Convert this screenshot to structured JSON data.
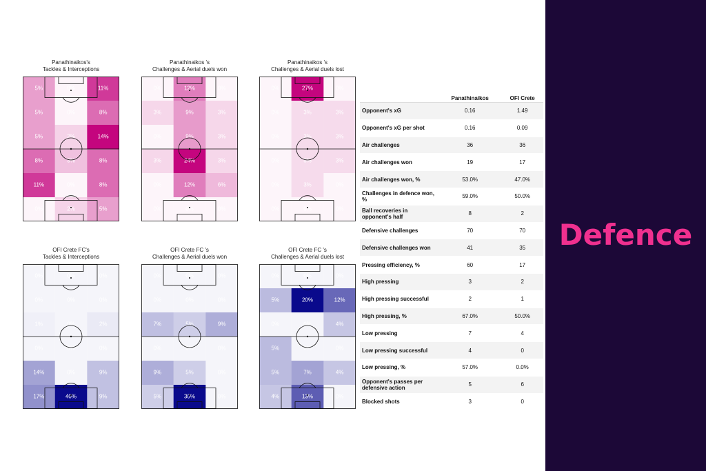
{
  "brand_panel": {
    "title": "Defence",
    "bg_color": "#1c0837",
    "text_color": "#f0308f"
  },
  "colors": {
    "team1": "#c4057e",
    "team2": "#0a0a8c"
  },
  "stats_table": {
    "columns": [
      "Panathinaikos",
      "OFI Crete"
    ],
    "rows": [
      {
        "label": "Opponent's xG",
        "v1": "0.16",
        "v2": "1.49"
      },
      {
        "label": "Opponent's xG per shot",
        "v1": "0.16",
        "v2": "0.09"
      },
      {
        "label": "Air challenges",
        "v1": "36",
        "v2": "36"
      },
      {
        "label": "Air challenges won",
        "v1": "19",
        "v2": "17"
      },
      {
        "label": "Air challenges won, %",
        "v1": "53.0%",
        "v2": "47.0%"
      },
      {
        "label": "Challenges in defence won, %",
        "v1": "59.0%",
        "v2": "50.0%"
      },
      {
        "label": "Ball recoveries in opponent's half",
        "v1": "8",
        "v2": "2"
      },
      {
        "label": "Defensive challenges",
        "v1": "70",
        "v2": "70"
      },
      {
        "label": "Defensive challenges won",
        "v1": "41",
        "v2": "35"
      },
      {
        "label": "Pressing efficiency, %",
        "v1": "60",
        "v2": "17"
      },
      {
        "label": "High pressing",
        "v1": "3",
        "v2": "2"
      },
      {
        "label": "High pressing successful",
        "v1": "2",
        "v2": "1"
      },
      {
        "label": "High pressing, %",
        "v1": "67.0%",
        "v2": "50.0%"
      },
      {
        "label": "Low pressing",
        "v1": "7",
        "v2": "4"
      },
      {
        "label": "Low pressing successful",
        "v1": "4",
        "v2": "0"
      },
      {
        "label": "Low pressing, %",
        "v1": "57.0%",
        "v2": "0.0%"
      },
      {
        "label": "Opponent's passes per defensive action",
        "v1": "5",
        "v2": "6"
      },
      {
        "label": "Blocked shots",
        "v1": "3",
        "v2": "0"
      }
    ]
  },
  "chart_data": [
    {
      "type": "heatmap",
      "title": "Panathinaikos's\nTackles & Interceptions",
      "team": "team1",
      "values": [
        [
          5,
          0,
          11
        ],
        [
          5,
          0,
          8
        ],
        [
          5,
          2,
          14
        ],
        [
          8,
          3,
          8
        ],
        [
          11,
          0,
          8
        ],
        [
          0,
          2,
          5
        ]
      ]
    },
    {
      "type": "heatmap",
      "title": "Panathinaikos 's\nChallenges & Aerial duels won",
      "team": "team1",
      "values": [
        [
          0,
          12,
          0
        ],
        [
          3,
          9,
          3
        ],
        [
          0,
          9,
          3
        ],
        [
          3,
          24,
          3
        ],
        [
          0,
          12,
          6
        ],
        [
          0,
          0,
          0
        ]
      ]
    },
    {
      "type": "heatmap",
      "title": "Panathinaikos 's\nChallenges & Aerial duels lost",
      "team": "team1",
      "values": [
        [
          0,
          27,
          0
        ],
        [
          0,
          3,
          3
        ],
        [
          0,
          3,
          3
        ],
        [
          0,
          3,
          3
        ],
        [
          0,
          3,
          0
        ],
        [
          0,
          0,
          0
        ]
      ]
    },
    {
      "type": "heatmap",
      "title": "OFI Crete FC's\nTackles & Interceptions",
      "team": "team2",
      "values": [
        [
          0,
          0,
          0
        ],
        [
          0,
          0,
          0
        ],
        [
          1,
          0,
          2
        ],
        [
          0,
          0,
          0
        ],
        [
          14,
          0,
          9
        ],
        [
          17,
          40,
          9
        ]
      ]
    },
    {
      "type": "heatmap",
      "title": "OFI Crete FC 's\nChallenges & Aerial duels won",
      "team": "team2",
      "values": [
        [
          0,
          0,
          0
        ],
        [
          0,
          0,
          0
        ],
        [
          7,
          5,
          9
        ],
        [
          0,
          0,
          0
        ],
        [
          9,
          5,
          0
        ],
        [
          5,
          30,
          0
        ]
      ]
    },
    {
      "type": "heatmap",
      "title": "OFI Crete FC 's\nChallenges & Aerial duels lost",
      "team": "team2",
      "values": [
        [
          0,
          0,
          0
        ],
        [
          5,
          20,
          12
        ],
        [
          0,
          0,
          4
        ],
        [
          5,
          0,
          0
        ],
        [
          5,
          7,
          4
        ],
        [
          4,
          13,
          0
        ]
      ]
    }
  ]
}
